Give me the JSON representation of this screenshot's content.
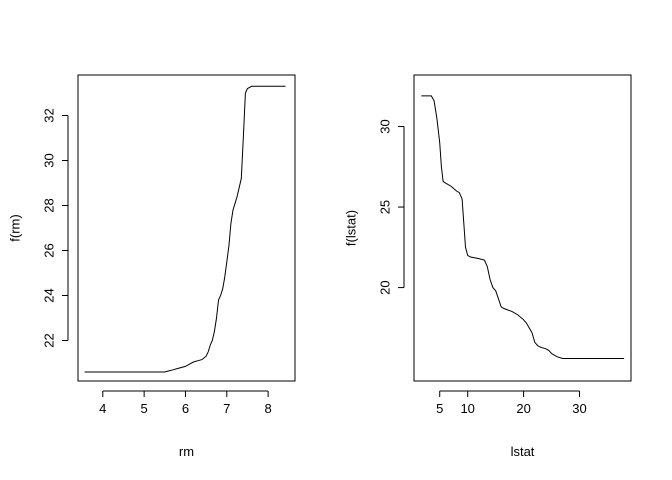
{
  "chart_data": [
    {
      "type": "line",
      "title": "",
      "xlabel": "rm",
      "ylabel": "f(rm)",
      "xlim": [
        3.4,
        8.65
      ],
      "ylim": [
        20.2,
        33.8
      ],
      "xticks": [
        4,
        5,
        6,
        7,
        8
      ],
      "yticks": [
        22,
        24,
        26,
        28,
        30,
        32
      ],
      "grid": false,
      "legend": "none",
      "color": "#000000",
      "series": [
        {
          "x": [
            3.56,
            5.5,
            5.6,
            5.7,
            5.8,
            5.9,
            6.0,
            6.1,
            6.2,
            6.3,
            6.4,
            6.5,
            6.55,
            6.6,
            6.65,
            6.7,
            6.75,
            6.8,
            6.85,
            6.9,
            6.95,
            7.0,
            7.05,
            7.1,
            7.15,
            7.2,
            7.25,
            7.3,
            7.35,
            7.4,
            7.45,
            7.5,
            7.55,
            7.6,
            7.7,
            7.8,
            8.0,
            8.2,
            8.42
          ],
          "y": [
            20.6,
            20.6,
            20.65,
            20.7,
            20.75,
            20.8,
            20.85,
            20.95,
            21.05,
            21.1,
            21.15,
            21.3,
            21.5,
            21.8,
            22.0,
            22.4,
            23.0,
            23.8,
            24.0,
            24.3,
            24.8,
            25.5,
            26.2,
            27.2,
            27.8,
            28.1,
            28.4,
            28.8,
            29.2,
            31.0,
            33.0,
            33.2,
            33.25,
            33.3,
            33.3,
            33.3,
            33.3,
            33.3,
            33.3
          ]
        }
      ]
    },
    {
      "type": "line",
      "title": "",
      "xlabel": "lstat",
      "ylabel": "f(lstat)",
      "xlim": [
        0.4,
        39.2
      ],
      "ylim": [
        14.2,
        33.2
      ],
      "xticks": [
        5,
        10,
        20,
        30
      ],
      "yticks": [
        20,
        25,
        30
      ],
      "grid": false,
      "legend": "none",
      "color": "#000000",
      "series": [
        {
          "x": [
            1.73,
            3.5,
            4.0,
            4.5,
            5.0,
            5.3,
            5.6,
            6.0,
            7.0,
            8.0,
            8.5,
            9.0,
            9.3,
            9.6,
            10.0,
            10.5,
            12.0,
            13.0,
            13.5,
            14.0,
            14.5,
            15.0,
            15.5,
            16.0,
            16.5,
            18.0,
            19.0,
            20.0,
            20.5,
            21.0,
            21.5,
            22.0,
            22.5,
            23.0,
            24.0,
            24.5,
            25.0,
            26.0,
            27.0,
            30.0,
            34.0,
            37.97
          ],
          "y": [
            31.9,
            31.9,
            31.6,
            30.5,
            29.0,
            27.5,
            26.6,
            26.5,
            26.3,
            26.0,
            25.9,
            25.5,
            24.0,
            22.5,
            22.0,
            21.9,
            21.8,
            21.7,
            21.3,
            20.5,
            20.0,
            19.8,
            19.3,
            18.8,
            18.7,
            18.5,
            18.3,
            18.0,
            17.8,
            17.5,
            17.2,
            16.6,
            16.4,
            16.3,
            16.2,
            16.1,
            15.9,
            15.7,
            15.6,
            15.6,
            15.6,
            15.6
          ]
        }
      ]
    }
  ]
}
